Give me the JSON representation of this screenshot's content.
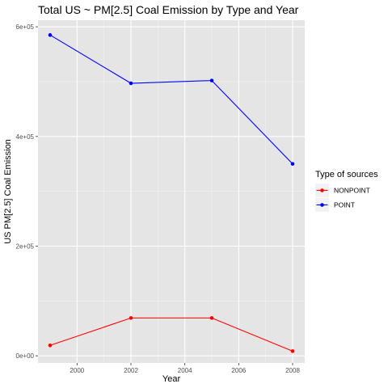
{
  "chart_data": {
    "type": "line",
    "title": "Total US ~ PM[2.5] Coal Emission by Type and Year",
    "xlabel": "Year",
    "ylabel": "US  PM[2.5] Coal Emission",
    "x": [
      1999,
      2002,
      2005,
      2008
    ],
    "xlim": [
      1998.55,
      2008.45
    ],
    "ylim": [
      -13000,
      612000
    ],
    "x_ticks": [
      2000,
      2002,
      2004,
      2006,
      2008
    ],
    "x_tick_labels": [
      "2000",
      "2002",
      "2004",
      "2006",
      "2008"
    ],
    "y_ticks": [
      0,
      200000,
      400000,
      600000
    ],
    "y_tick_labels": [
      "0e+00",
      "2e+05",
      "4e+05",
      "6e+05"
    ],
    "grid": true,
    "legend": {
      "title": "Type of sources",
      "placement": "right"
    },
    "series": [
      {
        "name": "NONPOINT",
        "color": "#ff0000",
        "values": [
          19000,
          69000,
          69000,
          8500
        ]
      },
      {
        "name": "POINT",
        "color": "#0000ff",
        "values": [
          585000,
          497000,
          502000,
          350000
        ]
      }
    ]
  },
  "colors": {
    "panel_background": "#e5e5e5",
    "grid_major": "#ffffff",
    "grid_minor": "#f2f2f2",
    "legend_key_background": "#f2f2f2"
  }
}
